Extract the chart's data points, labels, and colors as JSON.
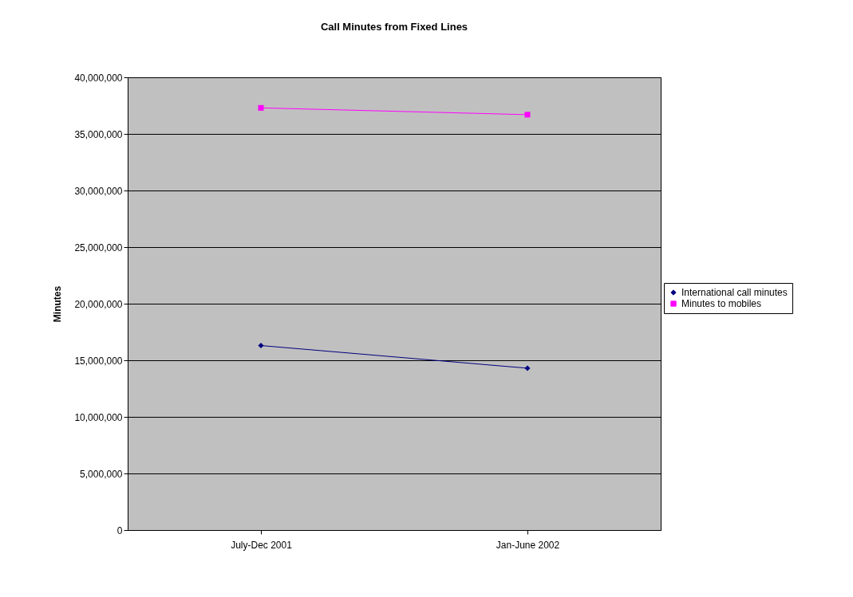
{
  "chart_data": {
    "type": "line",
    "title": "Call Minutes from Fixed Lines",
    "ylabel": "Minutes",
    "categories": [
      "July-Dec 2001",
      "Jan-June 2002"
    ],
    "series": [
      {
        "name": "International call minutes",
        "color": "#000080",
        "marker": "diamond",
        "values": [
          16300000,
          14300000
        ]
      },
      {
        "name": "Minutes to mobiles",
        "color": "#ff00ff",
        "marker": "square",
        "values": [
          37300000,
          36700000
        ]
      }
    ],
    "ylim": [
      0,
      40000000
    ],
    "yticks": [
      0,
      {
        "value": 5000000,
        "label": "5,000,000"
      },
      {
        "value": 10000000,
        "label": "10,000,000"
      },
      {
        "value": 15000000,
        "label": "15,000,000"
      },
      {
        "value": 20000000,
        "label": "20,000,000"
      },
      {
        "value": 25000000,
        "label": "25,000,000"
      },
      {
        "value": 30000000,
        "label": "30,000,000"
      },
      {
        "value": 35000000,
        "label": "35,000,000"
      },
      {
        "value": 40000000,
        "label": "40,000,000"
      }
    ],
    "grid": "y",
    "legend": "right"
  }
}
